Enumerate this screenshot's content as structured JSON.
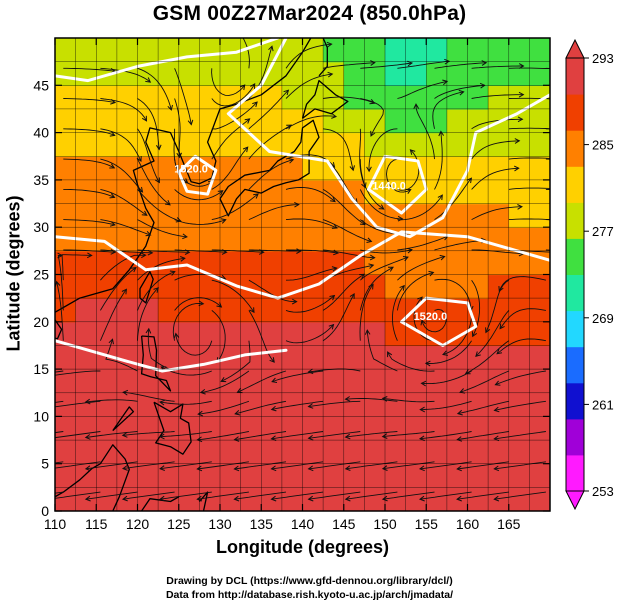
{
  "title": "GSM 00Z27Mar2024 (850.0hPa)",
  "xlabel": "Longitude (degrees)",
  "ylabel": "Latitude  (degrees)",
  "credits": [
    "Drawing by DCL (https://www.gfd-dennou.org/library/dcl/)",
    "Data from http://database.rish.kyoto-u.ac.jp/arch/jmadata/"
  ],
  "map": {
    "lon_range": [
      110,
      170
    ],
    "lat_range": [
      0,
      50
    ],
    "lon_ticks": [
      110,
      115,
      120,
      125,
      130,
      135,
      140,
      145,
      150,
      155,
      160,
      165
    ],
    "lat_ticks": [
      0,
      5,
      10,
      15,
      20,
      25,
      30,
      35,
      40,
      45
    ],
    "grid": true,
    "colorbar": {
      "ticks": [
        253,
        261,
        269,
        277,
        285,
        293
      ],
      "range": [
        253,
        293
      ],
      "colors": [
        "#ff1aff",
        "#a000d8",
        "#1010d0",
        "#1a6cff",
        "#22d8ff",
        "#20e8a0",
        "#40e040",
        "#c8e000",
        "#ffd000",
        "#ff8000",
        "#f04000",
        "#e04040"
      ]
    },
    "contour_labels": [
      {
        "text": "1520.0",
        "lon": 126.5,
        "lat": 35.8
      },
      {
        "text": "1440.0",
        "lon": 150.5,
        "lat": 34.0
      },
      {
        "text": "1520.0",
        "lon": 155.5,
        "lat": 20.2
      }
    ]
  }
}
